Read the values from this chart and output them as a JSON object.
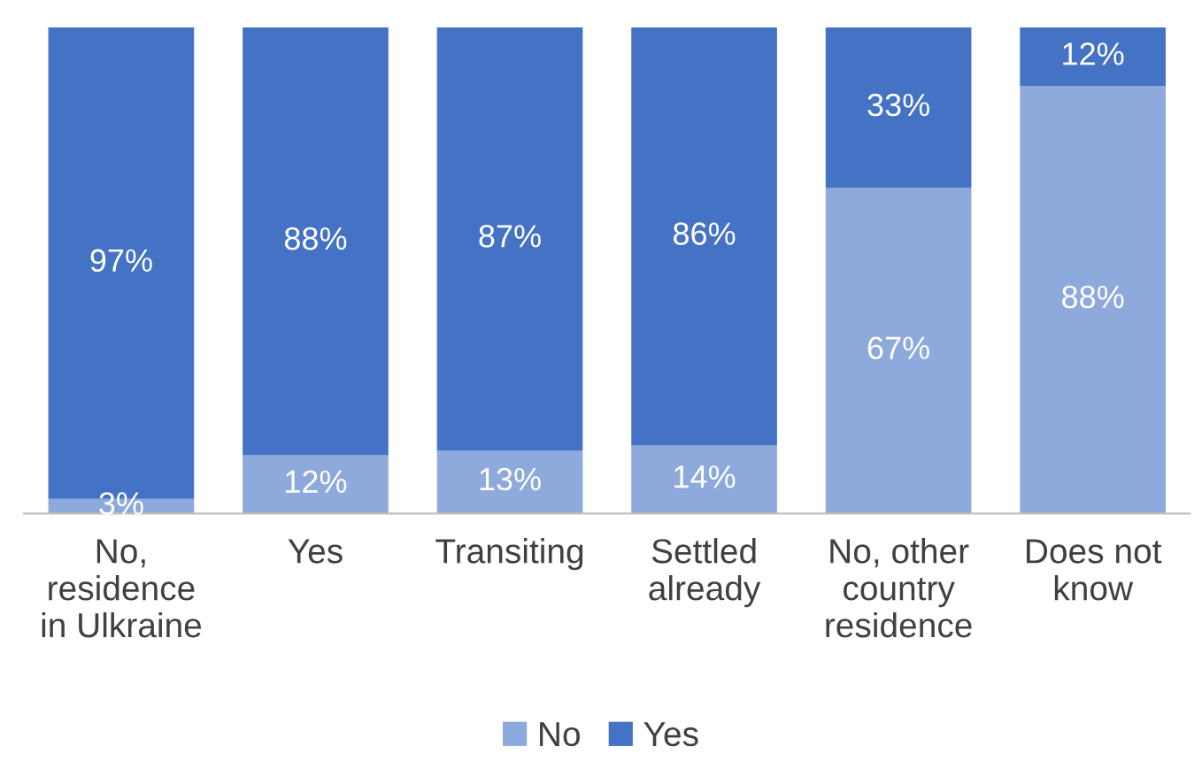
{
  "chart_data": {
    "type": "bar",
    "stacked": true,
    "legend": "bottom",
    "grid": false,
    "categories": [
      "No,\nresidence\nin Ulkraine",
      "Yes",
      "Transiting",
      "Settled\nalready",
      "No, other\ncountry\nresidence",
      "Does not\nknow"
    ],
    "series": [
      {
        "name": "No",
        "color": "#8EA9DB",
        "values": [
          3,
          12,
          13,
          14,
          67,
          88
        ],
        "value_labels": [
          "3%",
          "12%",
          "13%",
          "14%",
          "67%",
          "88%"
        ]
      },
      {
        "name": "Yes",
        "color": "#4472C4",
        "values": [
          97,
          88,
          87,
          86,
          33,
          12
        ],
        "value_labels": [
          "97%",
          "88%",
          "87%",
          "86%",
          "33%",
          "12%"
        ]
      }
    ]
  }
}
